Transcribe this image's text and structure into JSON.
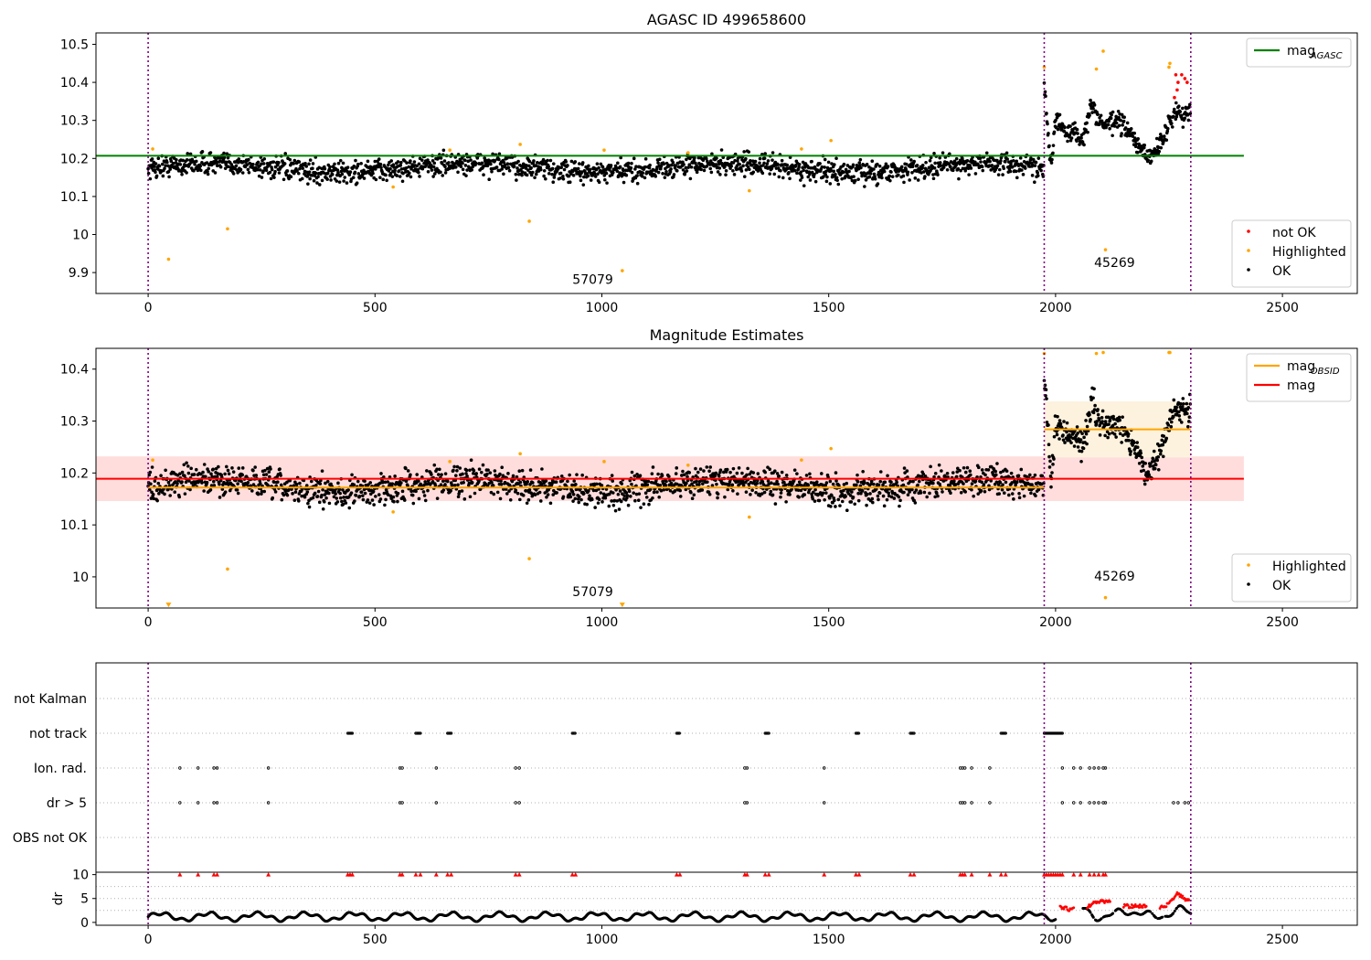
{
  "chart_data": [
    {
      "type": "scatter",
      "title": "AGASC ID 499658600",
      "xlim": [
        -115,
        2665
      ],
      "ylim": [
        9.845,
        10.53
      ],
      "xticks": [
        0,
        500,
        1000,
        1500,
        2000,
        2500
      ],
      "yticks": [
        9.9,
        10.0,
        10.1,
        10.2,
        10.3,
        10.4,
        10.5
      ],
      "vlines": [
        0,
        1975,
        2298
      ],
      "hlines": [
        {
          "name": "mag_AGASC",
          "y": 10.207,
          "x": [
            -115,
            2415
          ],
          "color": "#008000"
        }
      ],
      "annotations": [
        {
          "text": "57079",
          "x": 980,
          "y": 9.87
        },
        {
          "text": "45269",
          "x": 2130,
          "y": 9.915
        }
      ],
      "legends": [
        {
          "position": "top-right",
          "items": [
            {
              "label": "mag",
              "sub": "AGASC",
              "kind": "line",
              "color": "#008000"
            }
          ]
        },
        {
          "position": "lower-right",
          "items": [
            {
              "label": "not OK",
              "kind": "point",
              "color": "#ff0000"
            },
            {
              "label": "Highlighted",
              "kind": "point",
              "color": "#ffa500"
            },
            {
              "label": "OK",
              "kind": "point",
              "color": "#000000"
            }
          ]
        }
      ],
      "series": [
        {
          "name": "OK",
          "color": "#000000",
          "segments": [
            {
              "x0": 0,
              "x1": 1975,
              "count": 1750,
              "center": 10.175,
              "spread": 0.02
            },
            {
              "x0": 1975,
              "x1": 2298,
              "count": 320,
              "track": [
                [
                  1975,
                  10.4
                ],
                [
                  1990,
                  10.18
                ],
                [
                  2000,
                  10.3
                ],
                [
                  2020,
                  10.27
                ],
                [
                  2040,
                  10.27
                ],
                [
                  2060,
                  10.25
                ],
                [
                  2080,
                  10.34
                ],
                [
                  2100,
                  10.29
                ],
                [
                  2120,
                  10.29
                ],
                [
                  2140,
                  10.3
                ],
                [
                  2160,
                  10.27
                ],
                [
                  2180,
                  10.24
                ],
                [
                  2200,
                  10.2
                ],
                [
                  2220,
                  10.22
                ],
                [
                  2240,
                  10.26
                ],
                [
                  2260,
                  10.32
                ],
                [
                  2298,
                  10.32
                ]
              ],
              "spread": 0.018
            }
          ]
        },
        {
          "name": "Highlighted",
          "color": "#ffa500",
          "points": [
            [
              10,
              10.225
            ],
            [
              45,
              9.935
            ],
            [
              175,
              10.015
            ],
            [
              540,
              10.125
            ],
            [
              665,
              10.222
            ],
            [
              820,
              10.237
            ],
            [
              840,
              10.035
            ],
            [
              1005,
              10.222
            ],
            [
              1045,
              9.905
            ],
            [
              1190,
              10.215
            ],
            [
              1325,
              10.115
            ],
            [
              1440,
              10.225
            ],
            [
              1505,
              10.247
            ],
            [
              1975,
              10.44
            ],
            [
              2090,
              10.435
            ],
            [
              2105,
              10.482
            ],
            [
              2110,
              9.96
            ],
            [
              2250,
              10.44
            ],
            [
              2252,
              10.45
            ]
          ]
        },
        {
          "name": "not OK",
          "color": "#ff0000",
          "points": [
            [
              2265,
              10.42
            ],
            [
              2270,
              10.4
            ],
            [
              2278,
              10.42
            ],
            [
              2285,
              10.41
            ],
            [
              2290,
              10.4
            ],
            [
              2262,
              10.36
            ],
            [
              2268,
              10.38
            ]
          ]
        }
      ]
    },
    {
      "type": "scatter",
      "title": "Magnitude Estimates",
      "xlim": [
        -115,
        2665
      ],
      "ylim": [
        9.94,
        10.44
      ],
      "xticks": [
        0,
        500,
        1000,
        1500,
        2000,
        2500
      ],
      "yticks": [
        10.0,
        10.1,
        10.2,
        10.3,
        10.4
      ],
      "vlines": [
        0,
        1975,
        2298
      ],
      "bands": [
        {
          "x": [
            -115,
            2415
          ],
          "y": [
            10.146,
            10.232
          ],
          "color": "#ffdddd"
        },
        {
          "x": [
            1975,
            2298
          ],
          "y": [
            10.23,
            10.338
          ],
          "color": "#fdf2de"
        }
      ],
      "hlines": [
        {
          "name": "mag",
          "y": 10.189,
          "x": [
            -115,
            2415
          ],
          "color": "#ff0000"
        },
        {
          "name": "mag_OBSID",
          "y": 10.172,
          "x": [
            0,
            1975
          ],
          "color": "#ffa500"
        },
        {
          "name": "mag_OBSID",
          "y": 10.284,
          "x": [
            1975,
            2298
          ],
          "color": "#ffa500"
        }
      ],
      "annotations": [
        {
          "text": "57079",
          "x": 980,
          "y": 9.963
        },
        {
          "text": "45269",
          "x": 2130,
          "y": 9.993
        }
      ],
      "legends": [
        {
          "position": "top-right",
          "items": [
            {
              "label": "mag",
              "sub": "OBSID",
              "kind": "line",
              "color": "#ffa500"
            },
            {
              "label": "mag",
              "kind": "line",
              "color": "#ff0000"
            }
          ]
        },
        {
          "position": "lower-right",
          "items": [
            {
              "label": "Highlighted",
              "kind": "point",
              "color": "#ffa500"
            },
            {
              "label": "OK",
              "kind": "point",
              "color": "#000000"
            }
          ]
        }
      ],
      "series": [
        {
          "name": "OK",
          "color": "#000000",
          "segments": [
            {
              "x0": 0,
              "x1": 1975,
              "count": 1750,
              "center": 10.175,
              "spread": 0.02
            },
            {
              "x0": 1975,
              "x1": 2298,
              "count": 320,
              "track": [
                [
                  1975,
                  10.4
                ],
                [
                  1990,
                  10.18
                ],
                [
                  2000,
                  10.3
                ],
                [
                  2020,
                  10.27
                ],
                [
                  2040,
                  10.27
                ],
                [
                  2060,
                  10.25
                ],
                [
                  2080,
                  10.34
                ],
                [
                  2100,
                  10.29
                ],
                [
                  2120,
                  10.29
                ],
                [
                  2140,
                  10.3
                ],
                [
                  2160,
                  10.27
                ],
                [
                  2180,
                  10.24
                ],
                [
                  2200,
                  10.2
                ],
                [
                  2220,
                  10.22
                ],
                [
                  2240,
                  10.26
                ],
                [
                  2260,
                  10.32
                ],
                [
                  2298,
                  10.32
                ]
              ],
              "spread": 0.018
            }
          ]
        },
        {
          "name": "Highlighted",
          "color": "#ffa500",
          "points": [
            [
              10,
              10.225
            ],
            [
              540,
              10.125
            ],
            [
              665,
              10.222
            ],
            [
              820,
              10.237
            ],
            [
              840,
              10.035
            ],
            [
              1005,
              10.222
            ],
            [
              1190,
              10.215
            ],
            [
              1325,
              10.115
            ],
            [
              1440,
              10.225
            ],
            [
              1505,
              10.247
            ],
            [
              175,
              10.015
            ],
            [
              1975,
              10.43
            ],
            [
              2090,
              10.43
            ],
            [
              2105,
              10.432
            ],
            [
              2110,
              9.96
            ],
            [
              2250,
              10.432
            ],
            [
              2252,
              10.432
            ]
          ]
        },
        {
          "name": "Highlighted (clipped)",
          "color": "#ffa500",
          "markers": "triangle",
          "points": [
            [
              45,
              9.945
            ],
            [
              1045,
              9.945
            ]
          ]
        }
      ]
    },
    {
      "type": "scatter",
      "title": "",
      "xlim": [
        -115,
        2665
      ],
      "categories": [
        "not Kalman",
        "not track",
        "Ion. rad.",
        "dr > 5",
        "OBS not OK"
      ],
      "vlines": [
        0,
        1975,
        2298
      ],
      "series": [
        {
          "name": "not track",
          "intervals": [
            [
              440,
              450
            ],
            [
              590,
              600
            ],
            [
              660,
              668
            ],
            [
              935,
              942
            ],
            [
              1165,
              1172
            ],
            [
              1360,
              1368
            ],
            [
              1560,
              1567
            ],
            [
              1680,
              1688
            ],
            [
              1880,
              1890
            ],
            [
              1975,
              2015
            ]
          ]
        },
        {
          "name": "Ion. rad.",
          "points": [
            70,
            110,
            145,
            152,
            265,
            555,
            560,
            635,
            810,
            818,
            1315,
            1320,
            1490,
            1790,
            1795,
            1800,
            1815,
            1855,
            2015,
            2040,
            2055,
            2075,
            2085,
            2095,
            2105,
            2110
          ]
        },
        {
          "name": "dr > 5",
          "points": [
            70,
            110,
            145,
            152,
            265,
            555,
            560,
            635,
            810,
            818,
            1315,
            1320,
            1490,
            1790,
            1795,
            1800,
            1815,
            1855,
            2015,
            2040,
            2055,
            2075,
            2085,
            2095,
            2105,
            2110,
            2260,
            2270,
            2285,
            2293
          ]
        }
      ]
    },
    {
      "type": "scatter",
      "title": "",
      "xlim": [
        -115,
        2665
      ],
      "ylim": [
        -0.6,
        10.5
      ],
      "yticks": [
        0,
        5,
        10
      ],
      "ylabel": "dr",
      "vlines": [
        0,
        1975,
        2298
      ],
      "series": [
        {
          "name": "dr",
          "color": "#000000",
          "baseline": 1.2
        },
        {
          "name": "dr > 5",
          "color": "#ff0000",
          "y": 10,
          "points": [
            70,
            110,
            145,
            152,
            265,
            440,
            445,
            450,
            555,
            560,
            590,
            600,
            635,
            660,
            668,
            810,
            818,
            935,
            942,
            1165,
            1172,
            1315,
            1320,
            1360,
            1368,
            1490,
            1560,
            1567,
            1680,
            1688,
            1790,
            1795,
            1800,
            1815,
            1855,
            1880,
            1890,
            1975,
            1980,
            1985,
            1990,
            1995,
            2000,
            2005,
            2010,
            2015,
            2040,
            2055,
            2075,
            2085,
            2095,
            2105,
            2110
          ]
        },
        {
          "name": "dr red",
          "color": "#ff0000",
          "track": [
            [
              2010,
              3.2
            ],
            [
              2030,
              2.8
            ],
            [
              2075,
              3.5
            ],
            [
              2100,
              4.5
            ],
            [
              2160,
              3.5
            ],
            [
              2240,
              3.2
            ],
            [
              2270,
              6
            ],
            [
              2290,
              4.5
            ]
          ]
        }
      ]
    }
  ]
}
